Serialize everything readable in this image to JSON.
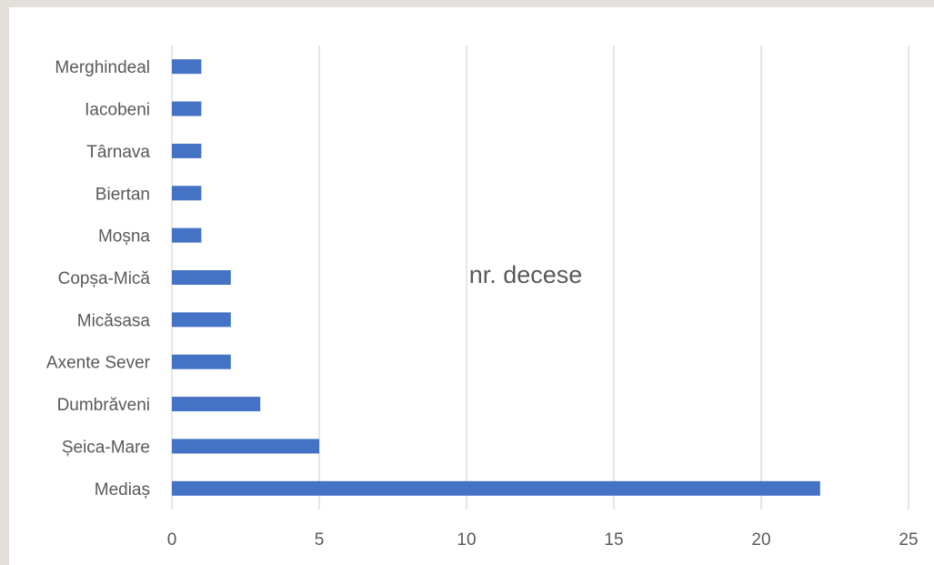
{
  "chart_data": {
    "type": "bar",
    "orientation": "horizontal",
    "title": "nr. decese",
    "categories": [
      "Merghindeal",
      "Iacobeni",
      "Târnava",
      "Biertan",
      "Moșna",
      "Copșa-Mică",
      "Micăsasa",
      "Axente Sever",
      "Dumbrăveni",
      "Șeica-Mare",
      "Mediaș"
    ],
    "values": [
      1,
      1,
      1,
      1,
      1,
      2,
      2,
      2,
      3,
      5,
      22
    ],
    "xlim": [
      0,
      25
    ],
    "xticks": [
      "0",
      "5",
      "10",
      "15",
      "20",
      "25"
    ],
    "grid": true,
    "legend": "none",
    "bar_color": "#4472c4",
    "grid_color": "#d9d9d9",
    "text_color": "#595959",
    "xlabel": "",
    "ylabel": ""
  }
}
